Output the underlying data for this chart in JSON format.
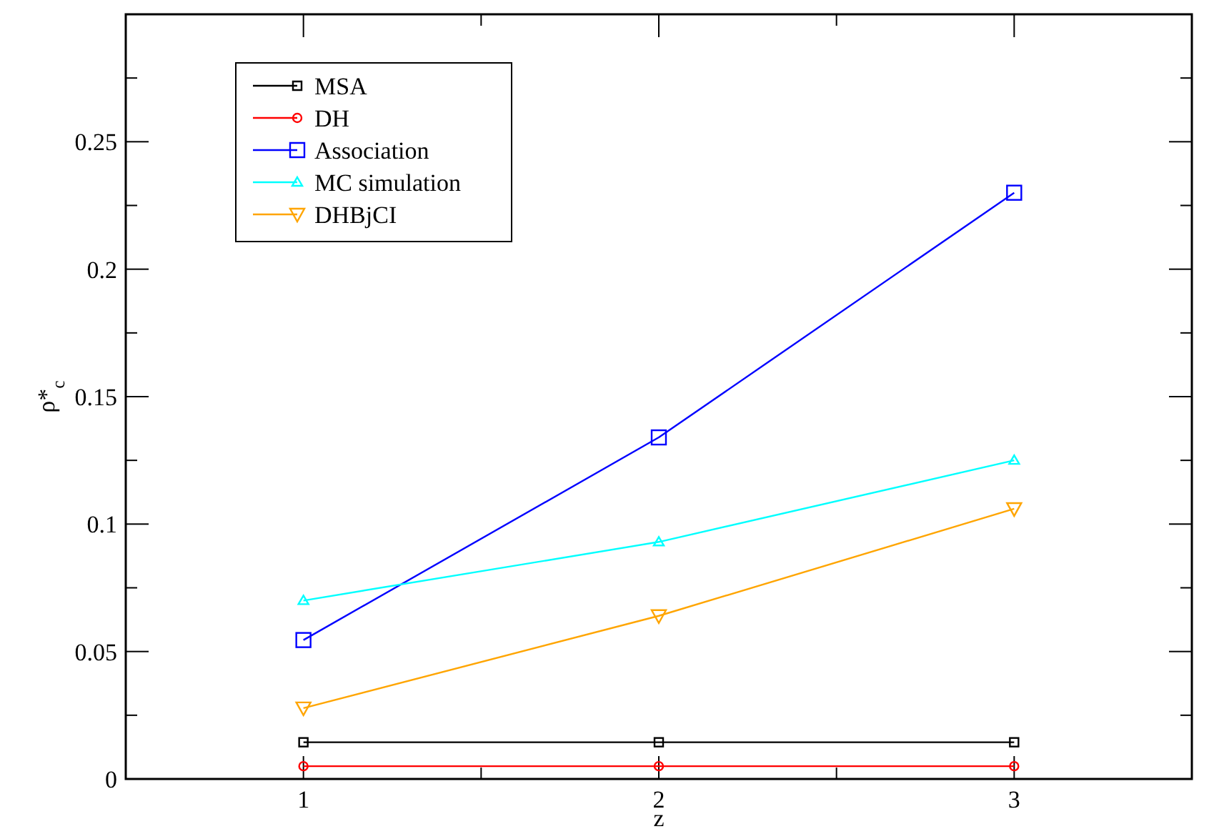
{
  "chart_data": {
    "type": "line",
    "xlabel": "z",
    "ylabel": "ρ*$_{c}$",
    "x": [
      1,
      2,
      3
    ],
    "xlim": [
      0.5,
      3.5
    ],
    "xticks": [
      1,
      {
        "value": 1.5,
        "label": null
      },
      2,
      {
        "value": 2.5,
        "label": null
      },
      3
    ],
    "ylim": [
      0,
      0.3
    ],
    "yticks": [
      0,
      {
        "value": 0.025,
        "label": null
      },
      0.05,
      {
        "value": 0.075,
        "label": null
      },
      0.1,
      {
        "value": 0.125,
        "label": null
      },
      0.15,
      {
        "value": 0.175,
        "label": null
      },
      0.2,
      {
        "value": 0.225,
        "label": null
      },
      0.25,
      {
        "value": 0.275,
        "label": null
      }
    ],
    "grid": false,
    "legend": "top left",
    "line_style": "solid",
    "series": [
      {
        "name": "MSA",
        "color": "#000000",
        "marker": "square",
        "values": [
          0.0144,
          0.0144,
          0.0144
        ]
      },
      {
        "name": "DH",
        "color": "#ff0000",
        "marker": "circle",
        "values": [
          0.005,
          0.005,
          0.005
        ]
      },
      {
        "name": "Association",
        "color": "#0000ff",
        "marker": "square",
        "values": [
          0.0545,
          0.134,
          0.23
        ]
      },
      {
        "name": "MC simulation",
        "color": "#00ffff",
        "marker": "triangle",
        "values": [
          0.07,
          0.093,
          0.125
        ]
      },
      {
        "name": "DHBjCI",
        "color": "#ffa500",
        "marker": "triangle-down",
        "values": [
          0.0278,
          0.064,
          0.106
        ]
      }
    ]
  }
}
